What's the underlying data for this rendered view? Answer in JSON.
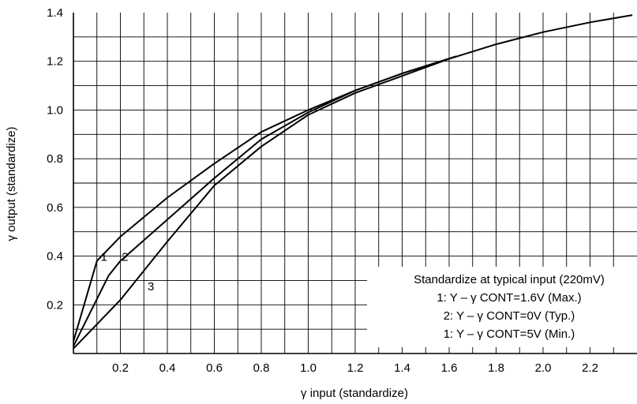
{
  "chart_data": {
    "type": "line",
    "xlabel": "γ input (standardize)",
    "ylabel": "γ output (standardize)",
    "xlim": [
      0,
      2.4
    ],
    "ylim": [
      0,
      1.4
    ],
    "grid": true,
    "x_ticks": [
      {
        "value": 0.2,
        "label": "0.2"
      },
      {
        "value": 0.4,
        "label": "0.4"
      },
      {
        "value": 0.6,
        "label": "0.6"
      },
      {
        "value": 0.8,
        "label": "0.8"
      },
      {
        "value": 1.0,
        "label": "1.0"
      },
      {
        "value": 1.2,
        "label": "1.2"
      },
      {
        "value": 1.4,
        "label": "1.4"
      },
      {
        "value": 1.6,
        "label": "1.6"
      },
      {
        "value": 1.8,
        "label": "1.8"
      },
      {
        "value": 2.0,
        "label": "2.0"
      },
      {
        "value": 2.2,
        "label": "2.2"
      }
    ],
    "y_ticks": [
      {
        "value": 0.2,
        "label": "0.2"
      },
      {
        "value": 0.4,
        "label": "0.4"
      },
      {
        "value": 0.6,
        "label": "0.6"
      },
      {
        "value": 0.8,
        "label": "0.8"
      },
      {
        "value": 1.0,
        "label": "1.0"
      },
      {
        "value": 1.2,
        "label": "1.2"
      },
      {
        "value": 1.4,
        "label": "1.4"
      }
    ],
    "series": [
      {
        "label": "1",
        "label_at": [
          0.13,
          0.38
        ],
        "x": [
          0.0,
          0.1,
          0.2,
          0.4,
          0.6,
          0.8,
          1.0,
          1.2,
          1.4,
          1.63
        ],
        "y": [
          0.05,
          0.38,
          0.48,
          0.64,
          0.78,
          0.91,
          1.0,
          1.08,
          1.15,
          1.22
        ]
      },
      {
        "label": "2",
        "label_at": [
          0.22,
          0.38
        ],
        "x": [
          0.0,
          0.15,
          0.2,
          0.4,
          0.6,
          0.8,
          1.0,
          1.2,
          1.4,
          1.63
        ],
        "y": [
          0.03,
          0.32,
          0.38,
          0.55,
          0.72,
          0.88,
          0.99,
          1.08,
          1.15,
          1.22
        ]
      },
      {
        "label": "3",
        "label_at": [
          0.33,
          0.26
        ],
        "x": [
          0.0,
          0.2,
          0.4,
          0.6,
          0.8,
          1.0,
          1.2,
          1.4,
          1.6,
          1.8,
          2.0,
          2.2,
          2.38
        ],
        "y": [
          0.02,
          0.22,
          0.46,
          0.69,
          0.85,
          0.98,
          1.07,
          1.14,
          1.21,
          1.27,
          1.32,
          1.36,
          1.39
        ]
      }
    ],
    "annotation": {
      "lines": [
        "Standardize at typical input (220mV)",
        "1: Y – γ CONT=1.6V (Max.)",
        "2: Y – γ CONT=0V (Typ.)",
        "1: Y – γ CONT=5V (Min.)"
      ],
      "position": "bottom-right"
    }
  }
}
